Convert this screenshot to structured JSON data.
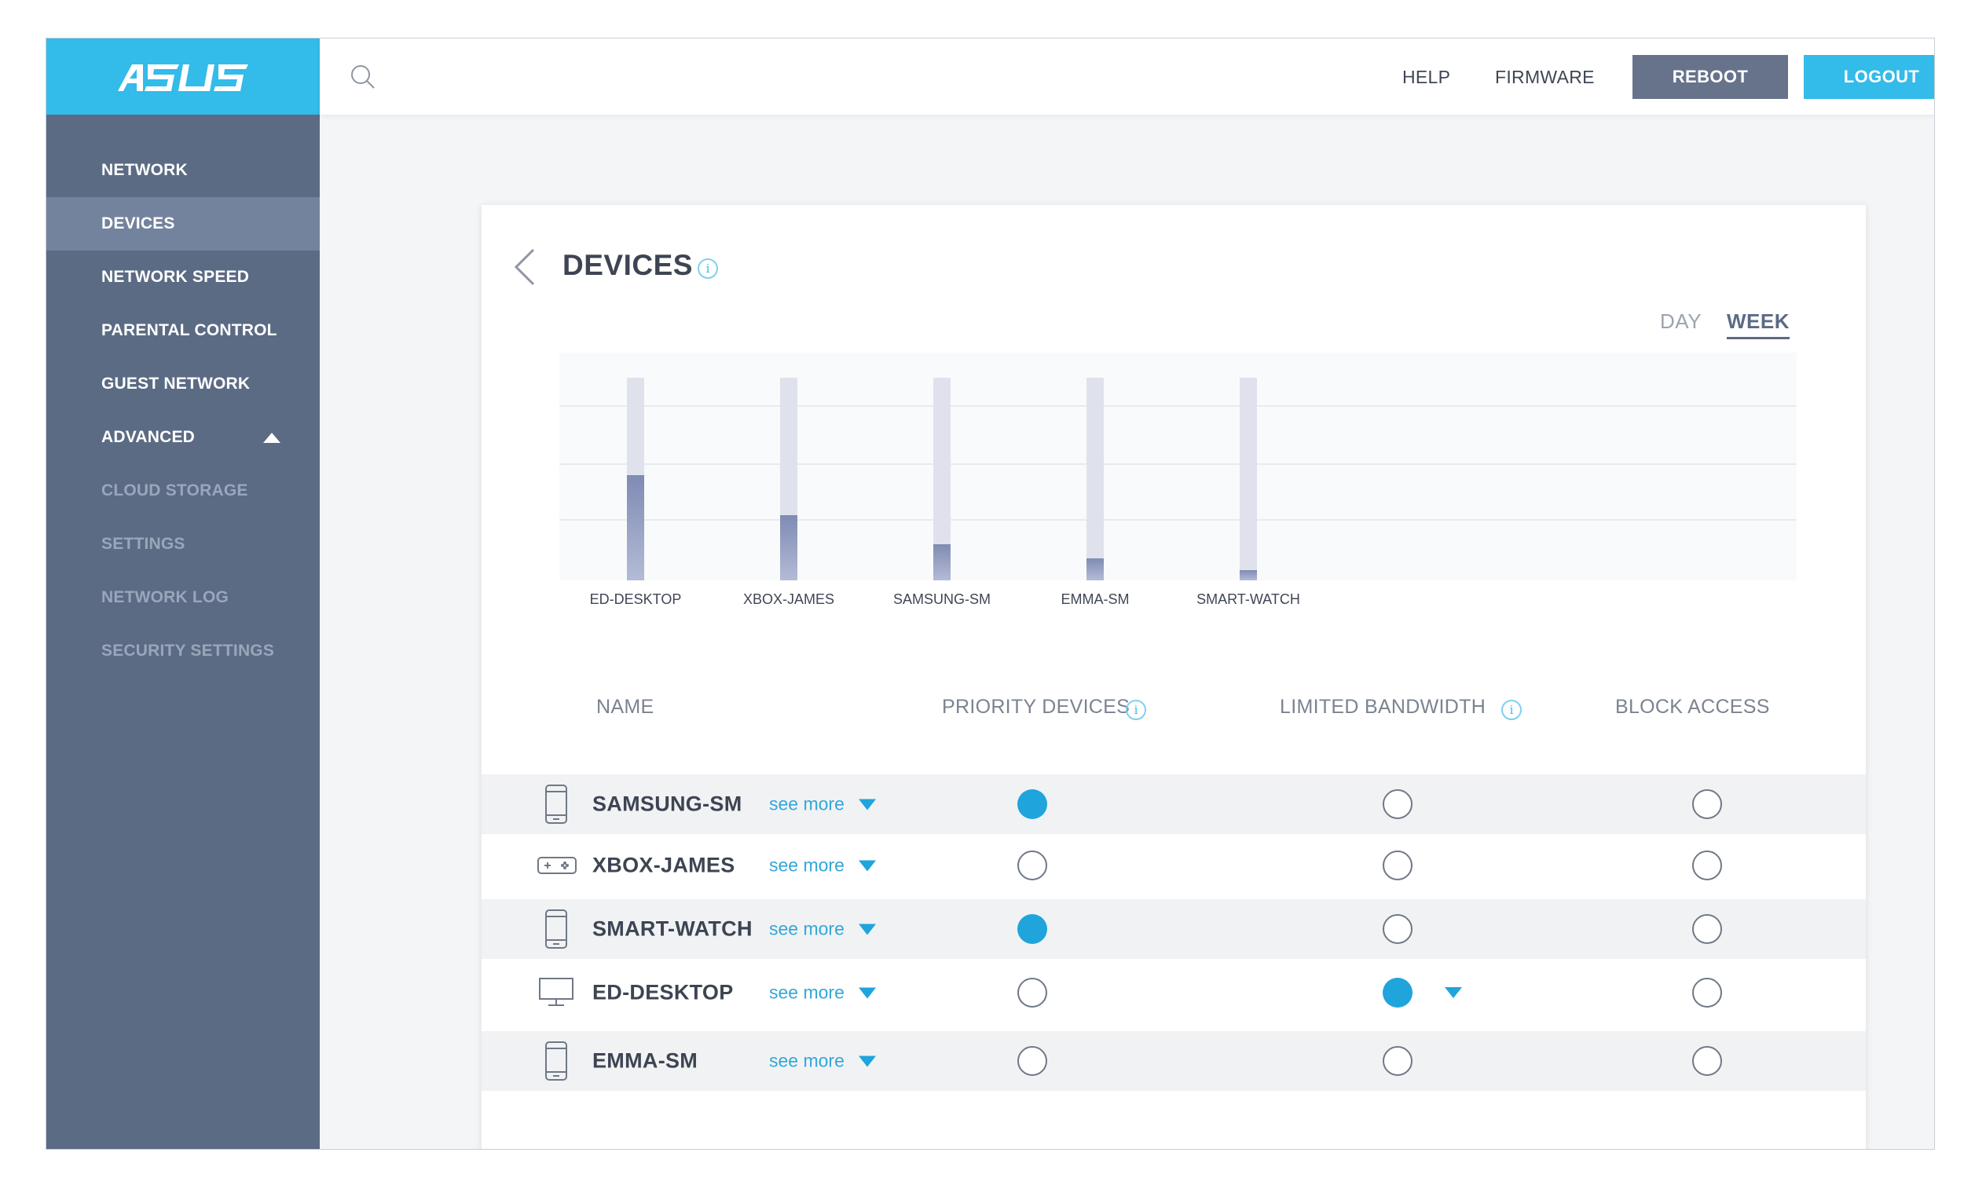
{
  "app": {
    "logo_text": "ASUS",
    "accent": "#33bbe9",
    "sidebar_color": "#5b6b84"
  },
  "sidebar": {
    "items": [
      {
        "label": "NETWORK"
      },
      {
        "label": "DEVICES"
      },
      {
        "label": "NETWORK SPEED"
      },
      {
        "label": "PARENTAL CONTROL"
      },
      {
        "label": "GUEST NETWORK"
      },
      {
        "label": "ADVANCED"
      },
      {
        "label": "CLOUD STORAGE"
      },
      {
        "label": "SETTINGS"
      },
      {
        "label": "NETWORK LOG"
      },
      {
        "label": "SECURITY SETTINGS"
      }
    ]
  },
  "topbar": {
    "help": "HELP",
    "firmware": "FIRMWARE",
    "reboot": "REBOOT",
    "logout": "LOGOUT"
  },
  "card": {
    "title": "DEVICES",
    "range_tabs": [
      "DAY",
      "WEEK"
    ],
    "selected_range": "WEEK"
  },
  "chart_data": {
    "type": "bar",
    "categories": [
      "ED-DESKTOP",
      "XBOX-JAMES",
      "SAMSUNG-SM",
      "EMMA-SM",
      "SMART-WATCH"
    ],
    "values": [
      52,
      32,
      18,
      11,
      5
    ],
    "ylim": [
      0,
      100
    ],
    "grid": true
  },
  "table": {
    "headers": {
      "name": "NAME",
      "priority": "PRIORITY DEVICES",
      "limited": "LIMITED BANDWIDTH",
      "block": "BLOCK ACCESS"
    },
    "see_more": "see more",
    "rows": [
      {
        "name": "SAMSUNG-SM",
        "icon": "phone-icon",
        "priority": true,
        "limited": false,
        "block": false
      },
      {
        "name": "XBOX-JAMES",
        "icon": "gamepad-icon",
        "priority": false,
        "limited": false,
        "block": false
      },
      {
        "name": "SMART-WATCH",
        "icon": "phone-icon",
        "priority": true,
        "limited": false,
        "block": false
      },
      {
        "name": "ED-DESKTOP",
        "icon": "desktop-icon",
        "priority": false,
        "limited": true,
        "block": false
      },
      {
        "name": "EMMA-SM",
        "icon": "phone-icon",
        "priority": false,
        "limited": false,
        "block": false
      }
    ]
  }
}
